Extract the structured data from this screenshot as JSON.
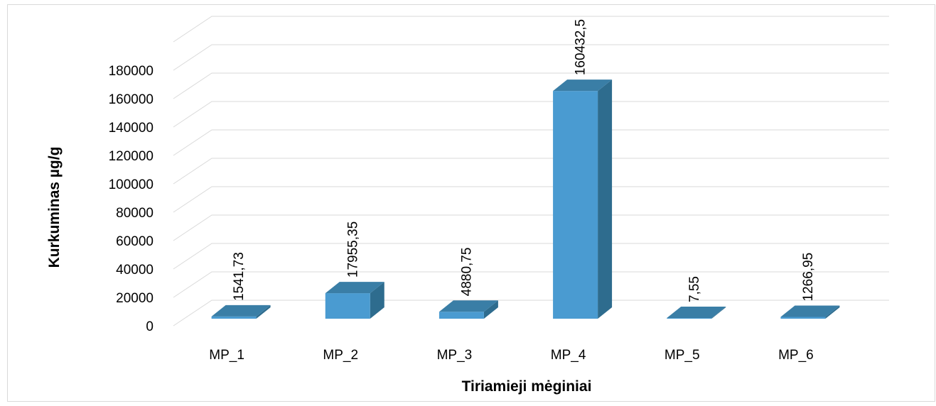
{
  "chart_data": {
    "type": "bar",
    "title": "",
    "xlabel": "Tiriamieji mėginiai",
    "ylabel": "Kurkuminas µg/g",
    "categories": [
      "MP_1",
      "MP_2",
      "MP_3",
      "MP_4",
      "MP_5",
      "MP_6"
    ],
    "values": [
      1541.73,
      17955.35,
      4880.75,
      160432.5,
      7.55,
      1266.95
    ],
    "data_labels": [
      "1541,73",
      "17955,35",
      "4880,75",
      "160432,5",
      "7,55",
      "1266,95"
    ],
    "ylim": [
      0,
      180000
    ],
    "yticks": [
      "0",
      "20000",
      "40000",
      "60000",
      "80000",
      "100000",
      "120000",
      "140000",
      "160000",
      "180000"
    ],
    "grid": true,
    "legend": "none",
    "style": "3d-column",
    "colors": {
      "front": "#4a9bd1",
      "side": "#2e6c8e",
      "top": "#3a7ea6",
      "grid": "#d9d9d9",
      "text": "#000000"
    }
  }
}
